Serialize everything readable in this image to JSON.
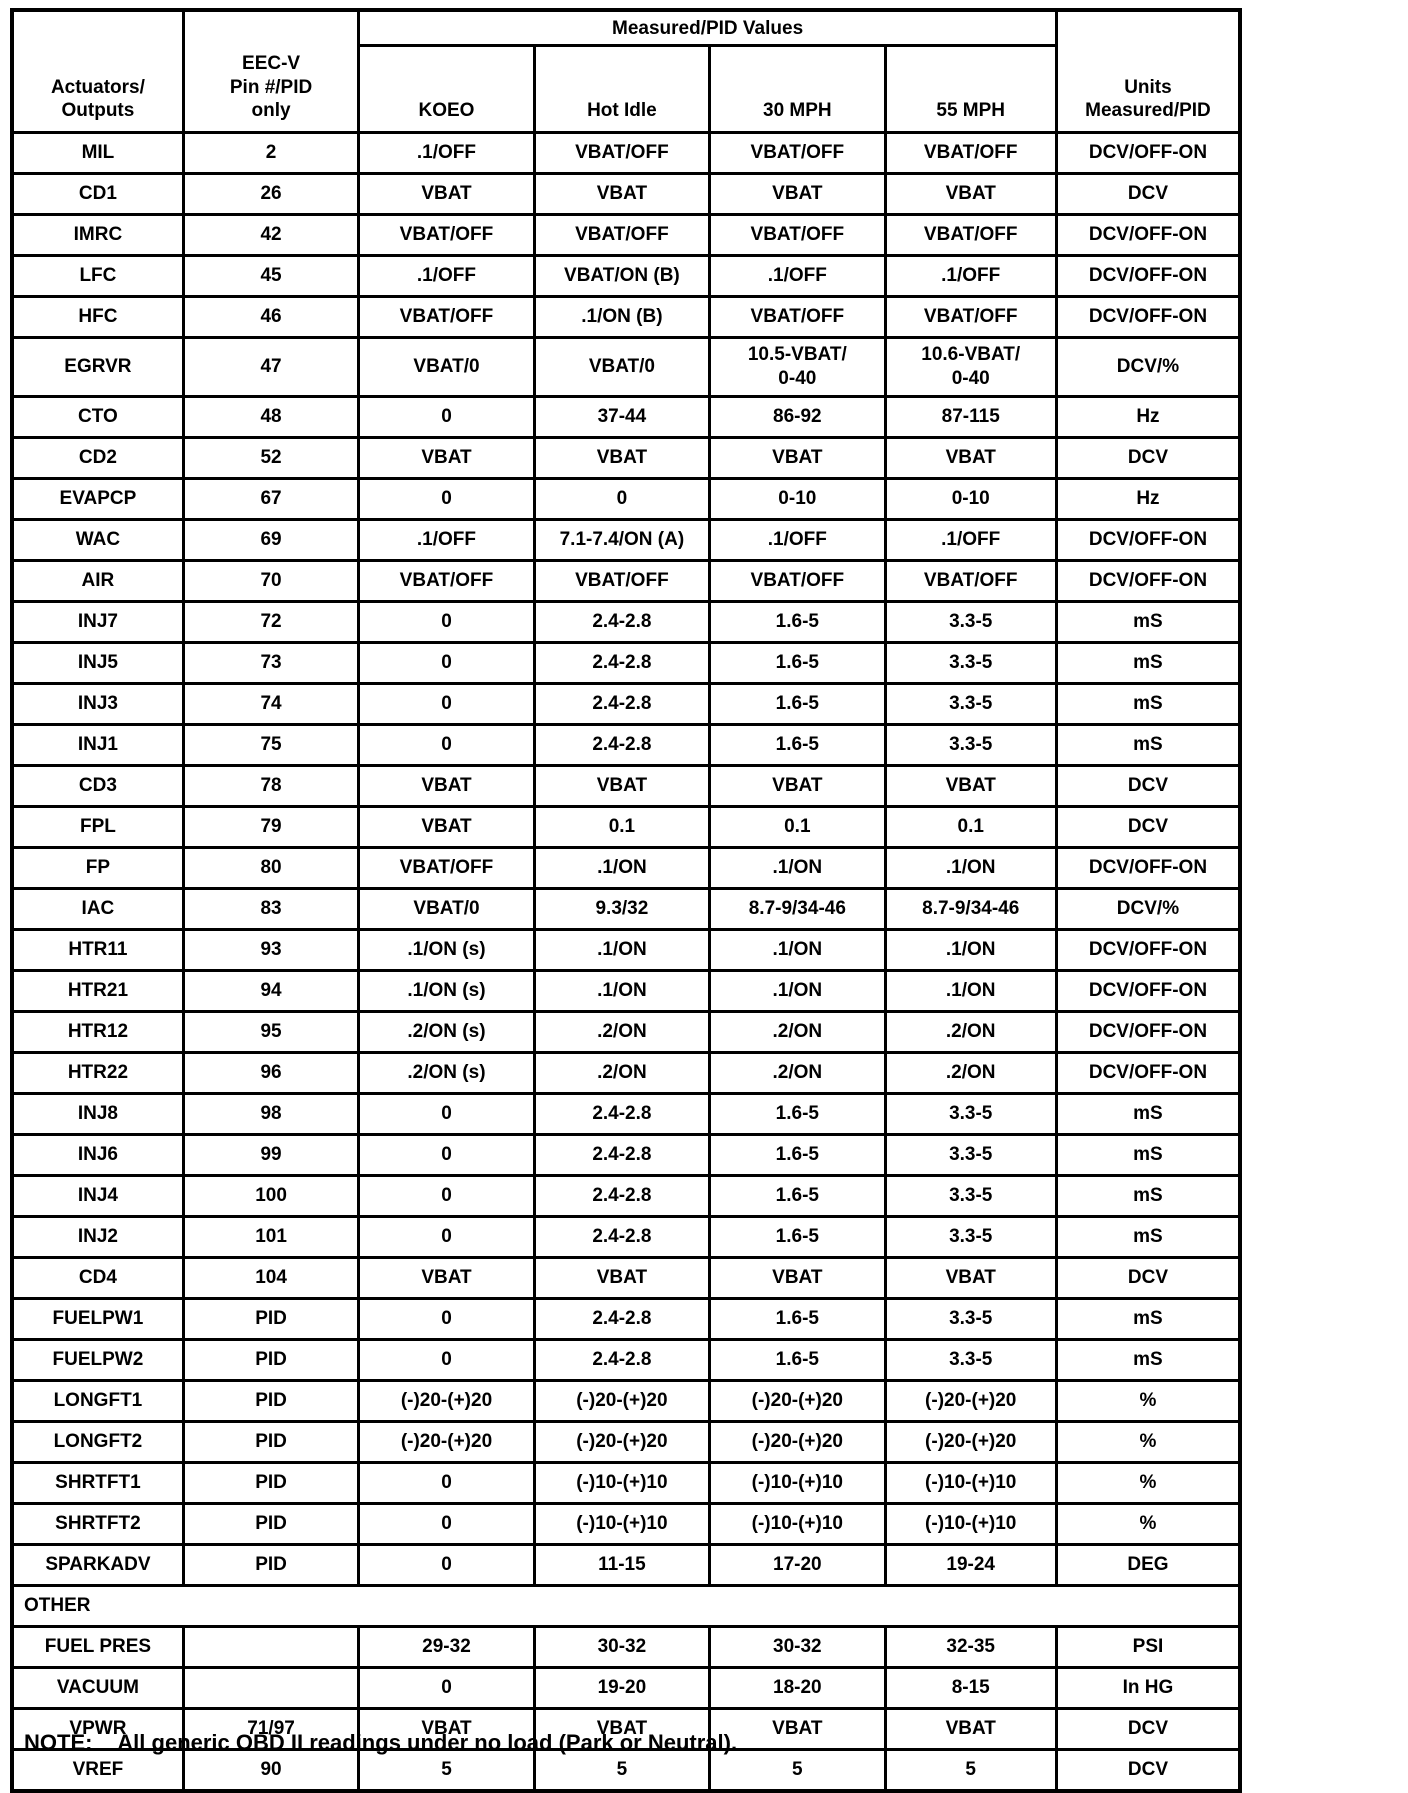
{
  "table": {
    "headers": {
      "actuators": "Actuators/\nOutputs",
      "pin": "EEC-V\nPin #/PID\nonly",
      "measured_group": "Measured/PID Values",
      "koeo": "KOEO",
      "hot_idle": "Hot Idle",
      "mph30": "30 MPH",
      "mph55": "55 MPH",
      "units": "Units\nMeasured/PID"
    },
    "main_rows": [
      [
        "MIL",
        "2",
        ".1/OFF",
        "VBAT/OFF",
        "VBAT/OFF",
        "VBAT/OFF",
        "DCV/OFF-ON"
      ],
      [
        "CD1",
        "26",
        "VBAT",
        "VBAT",
        "VBAT",
        "VBAT",
        "DCV"
      ],
      [
        "IMRC",
        "42",
        "VBAT/OFF",
        "VBAT/OFF",
        "VBAT/OFF",
        "VBAT/OFF",
        "DCV/OFF-ON"
      ],
      [
        "LFC",
        "45",
        ".1/OFF",
        "VBAT/ON (B)",
        ".1/OFF",
        ".1/OFF",
        "DCV/OFF-ON"
      ],
      [
        "HFC",
        "46",
        "VBAT/OFF",
        ".1/ON (B)",
        "VBAT/OFF",
        "VBAT/OFF",
        "DCV/OFF-ON"
      ],
      [
        "EGRVR",
        "47",
        "VBAT/0",
        "VBAT/0",
        "10.5-VBAT/\n0-40",
        "10.6-VBAT/\n0-40",
        "DCV/%"
      ],
      [
        "CTO",
        "48",
        "0",
        "37-44",
        "86-92",
        "87-115",
        "Hz"
      ],
      [
        "CD2",
        "52",
        "VBAT",
        "VBAT",
        "VBAT",
        "VBAT",
        "DCV"
      ],
      [
        "EVAPCP",
        "67",
        "0",
        "0",
        "0-10",
        "0-10",
        "Hz"
      ],
      [
        "WAC",
        "69",
        ".1/OFF",
        "7.1-7.4/ON (A)",
        ".1/OFF",
        ".1/OFF",
        "DCV/OFF-ON"
      ],
      [
        "AIR",
        "70",
        "VBAT/OFF",
        "VBAT/OFF",
        "VBAT/OFF",
        "VBAT/OFF",
        "DCV/OFF-ON"
      ],
      [
        "INJ7",
        "72",
        "0",
        "2.4-2.8",
        "1.6-5",
        "3.3-5",
        "mS"
      ],
      [
        "INJ5",
        "73",
        "0",
        "2.4-2.8",
        "1.6-5",
        "3.3-5",
        "mS"
      ],
      [
        "INJ3",
        "74",
        "0",
        "2.4-2.8",
        "1.6-5",
        "3.3-5",
        "mS"
      ],
      [
        "INJ1",
        "75",
        "0",
        "2.4-2.8",
        "1.6-5",
        "3.3-5",
        "mS"
      ],
      [
        "CD3",
        "78",
        "VBAT",
        "VBAT",
        "VBAT",
        "VBAT",
        "DCV"
      ],
      [
        "FPL",
        "79",
        "VBAT",
        "0.1",
        "0.1",
        "0.1",
        "DCV"
      ],
      [
        "FP",
        "80",
        "VBAT/OFF",
        ".1/ON",
        ".1/ON",
        ".1/ON",
        "DCV/OFF-ON"
      ],
      [
        "IAC",
        "83",
        "VBAT/0",
        "9.3/32",
        "8.7-9/34-46",
        "8.7-9/34-46",
        "DCV/%"
      ],
      [
        "HTR11",
        "93",
        ".1/ON (s)",
        ".1/ON",
        ".1/ON",
        ".1/ON",
        "DCV/OFF-ON"
      ],
      [
        "HTR21",
        "94",
        ".1/ON (s)",
        ".1/ON",
        ".1/ON",
        ".1/ON",
        "DCV/OFF-ON"
      ],
      [
        "HTR12",
        "95",
        ".2/ON (s)",
        ".2/ON",
        ".2/ON",
        ".2/ON",
        "DCV/OFF-ON"
      ],
      [
        "HTR22",
        "96",
        ".2/ON (s)",
        ".2/ON",
        ".2/ON",
        ".2/ON",
        "DCV/OFF-ON"
      ],
      [
        "INJ8",
        "98",
        "0",
        "2.4-2.8",
        "1.6-5",
        "3.3-5",
        "mS"
      ],
      [
        "INJ6",
        "99",
        "0",
        "2.4-2.8",
        "1.6-5",
        "3.3-5",
        "mS"
      ],
      [
        "INJ4",
        "100",
        "0",
        "2.4-2.8",
        "1.6-5",
        "3.3-5",
        "mS"
      ],
      [
        "INJ2",
        "101",
        "0",
        "2.4-2.8",
        "1.6-5",
        "3.3-5",
        "mS"
      ],
      [
        "CD4",
        "104",
        "VBAT",
        "VBAT",
        "VBAT",
        "VBAT",
        "DCV"
      ],
      [
        "FUELPW1",
        "PID",
        "0",
        "2.4-2.8",
        "1.6-5",
        "3.3-5",
        "mS"
      ],
      [
        "FUELPW2",
        "PID",
        "0",
        "2.4-2.8",
        "1.6-5",
        "3.3-5",
        "mS"
      ],
      [
        "LONGFT1",
        "PID",
        "(-)20-(+)20",
        "(-)20-(+)20",
        "(-)20-(+)20",
        "(-)20-(+)20",
        "%"
      ],
      [
        "LONGFT2",
        "PID",
        "(-)20-(+)20",
        "(-)20-(+)20",
        "(-)20-(+)20",
        "(-)20-(+)20",
        "%"
      ],
      [
        "SHRTFT1",
        "PID",
        "0",
        "(-)10-(+)10",
        "(-)10-(+)10",
        "(-)10-(+)10",
        "%"
      ],
      [
        "SHRTFT2",
        "PID",
        "0",
        "(-)10-(+)10",
        "(-)10-(+)10",
        "(-)10-(+)10",
        "%"
      ],
      [
        "SPARKADV",
        "PID",
        "0",
        "11-15",
        "17-20",
        "19-24",
        "DEG"
      ]
    ],
    "section_label": "OTHER",
    "other_rows": [
      [
        "FUEL PRES",
        "",
        "29-32",
        "30-32",
        "30-32",
        "32-35",
        "PSI"
      ],
      [
        "VACUUM",
        "",
        "0",
        "19-20",
        "18-20",
        "8-15",
        "In HG"
      ],
      [
        "VPWR",
        "71/97",
        "VBAT",
        "VBAT",
        "VBAT",
        "VBAT",
        "DCV"
      ],
      [
        "VREF",
        "90",
        "5",
        "5",
        "5",
        "5",
        "DCV"
      ]
    ]
  },
  "note": {
    "label": "NOTE:",
    "text": "All generic OBD II readings under no load (Park or Neutral)."
  }
}
